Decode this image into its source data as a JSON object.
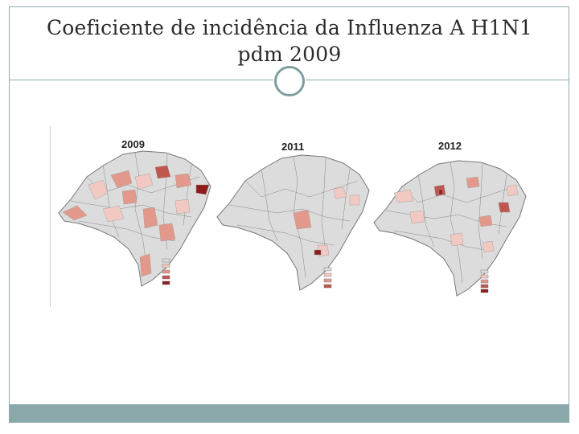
{
  "slide": {
    "title_line1": "Coeficiente de incidência da Influenza A H1N1",
    "title_line2": "pdm 2009"
  },
  "maps": [
    {
      "year": "2009"
    },
    {
      "year": "2011"
    },
    {
      "year": "2012"
    }
  ],
  "colors": {
    "frame": "#8ea9ab",
    "bar": "#8aa7aa",
    "base": "#dcdcdc",
    "light": "#f1c9c2",
    "medium": "#e2998b",
    "dark": "#c0574f",
    "darkest": "#8e1c1c"
  }
}
